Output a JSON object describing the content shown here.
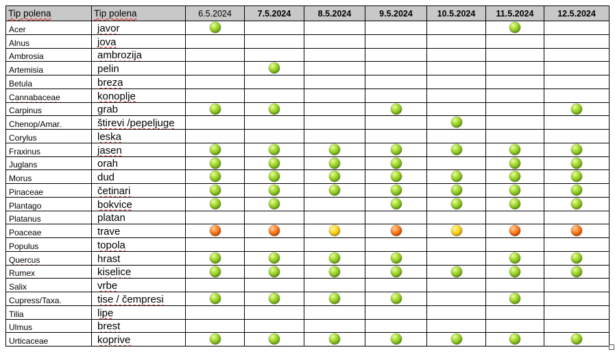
{
  "header": {
    "col_latin": "Tip polena",
    "col_local": "Tip polena",
    "dates": [
      "6.5.2024",
      "7.5.2024",
      "8.5.2024",
      "9.5.2024",
      "10.5.2024",
      "11.5.2024",
      "12.5.2024"
    ]
  },
  "levels": {
    "low": {
      "color": "#8dc81e"
    },
    "mid": {
      "color": "#ffcc14"
    },
    "high": {
      "color": "#f06414"
    }
  },
  "rows": [
    {
      "latin": "Acer",
      "local": "javor",
      "levels": [
        "low",
        "",
        "",
        "",
        "",
        "low",
        ""
      ]
    },
    {
      "latin": "Alnus",
      "local": "jova",
      "levels": [
        "",
        "",
        "",
        "",
        "",
        "",
        ""
      ]
    },
    {
      "latin": "Ambrosia",
      "local": "ambrozija",
      "levels": [
        "",
        "",
        "",
        "",
        "",
        "",
        ""
      ]
    },
    {
      "latin": "Artemisia",
      "local": "pelin",
      "levels": [
        "",
        "low",
        "",
        "",
        "",
        "",
        ""
      ]
    },
    {
      "latin": "Betula",
      "local": "breza",
      "levels": [
        "",
        "",
        "",
        "",
        "",
        "",
        ""
      ]
    },
    {
      "latin": "Cannabaceae",
      "local": "konoplje",
      "levels": [
        "",
        "",
        "",
        "",
        "",
        "",
        ""
      ]
    },
    {
      "latin": "Carpinus",
      "local": "grab",
      "levels": [
        "low",
        "low",
        "",
        "low",
        "",
        "",
        "low"
      ]
    },
    {
      "latin": "Chenop/Amar.",
      "local": "štirevi /pepeljuge",
      "levels": [
        "",
        "",
        "",
        "",
        "low",
        "",
        ""
      ]
    },
    {
      "latin": "Corylus",
      "local": "leska",
      "levels": [
        "",
        "",
        "",
        "",
        "",
        "",
        ""
      ]
    },
    {
      "latin": "Fraxinus",
      "local": "jasen",
      "levels": [
        "low",
        "low",
        "low",
        "low",
        "low",
        "low",
        "low"
      ]
    },
    {
      "latin": "Juglans",
      "local": "orah",
      "levels": [
        "low",
        "low",
        "low",
        "low",
        "",
        "low",
        "low"
      ]
    },
    {
      "latin": "Morus",
      "local": "dud",
      "levels": [
        "low",
        "low",
        "low",
        "low",
        "low",
        "low",
        "low"
      ]
    },
    {
      "latin": "Pinaceae",
      "local": "četinari",
      "levels": [
        "low",
        "low",
        "low",
        "low",
        "low",
        "low",
        "low"
      ]
    },
    {
      "latin": "Plantago",
      "local": "bokvice",
      "levels": [
        "low",
        "low",
        "",
        "low",
        "low",
        "low",
        "low"
      ]
    },
    {
      "latin": "Platanus",
      "local": "platan",
      "levels": [
        "",
        "",
        "",
        "",
        "",
        "",
        ""
      ]
    },
    {
      "latin": "Poaceae",
      "local": "trave",
      "levels": [
        "high",
        "high",
        "mid",
        "high",
        "mid",
        "high",
        "high"
      ]
    },
    {
      "latin": "Populus",
      "local": "topola",
      "levels": [
        "",
        "",
        "",
        "",
        "",
        "",
        ""
      ]
    },
    {
      "latin": "Quercus",
      "local": "hrast",
      "levels": [
        "low",
        "low",
        "low",
        "low",
        "",
        "low",
        "low"
      ]
    },
    {
      "latin": "Rumex",
      "local": "kiselice",
      "levels": [
        "low",
        "low",
        "low",
        "low",
        "low",
        "low",
        "low"
      ]
    },
    {
      "latin": "Salix",
      "local": "vrbe",
      "levels": [
        "",
        "",
        "",
        "",
        "",
        "",
        ""
      ]
    },
    {
      "latin": "Cupress/Taxa.",
      "local": "tise / čempresi",
      "levels": [
        "low",
        "low",
        "low",
        "low",
        "",
        "low",
        ""
      ]
    },
    {
      "latin": "Tilia",
      "local": "lipe",
      "levels": [
        "",
        "",
        "",
        "",
        "",
        "",
        ""
      ]
    },
    {
      "latin": "Ulmus",
      "local": "brest",
      "levels": [
        "",
        "",
        "",
        "",
        "",
        "",
        ""
      ]
    },
    {
      "latin": "Urticaceae",
      "local": "koprive",
      "levels": [
        "low",
        "low",
        "low",
        "low",
        "low",
        "low",
        "low"
      ]
    }
  ]
}
